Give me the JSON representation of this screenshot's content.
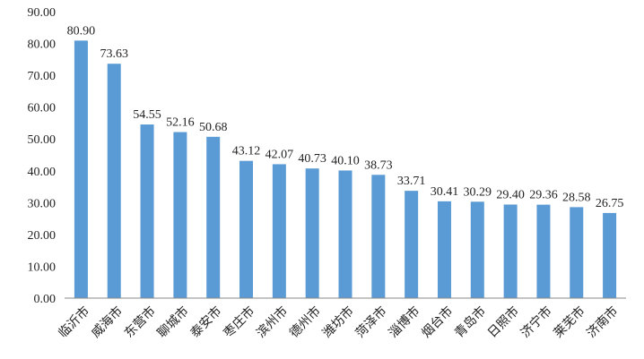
{
  "chart_data": {
    "type": "bar",
    "title": "",
    "xlabel": "",
    "ylabel": "",
    "categories": [
      "临沂市",
      "威海市",
      "东营市",
      "聊城市",
      "泰安市",
      "枣庄市",
      "滨州市",
      "德州市",
      "潍坊市",
      "菏泽市",
      "淄博市",
      "烟台市",
      "青岛市",
      "日照市",
      "济宁市",
      "莱芜市",
      "济南市"
    ],
    "values": [
      80.9,
      73.63,
      54.55,
      52.16,
      50.68,
      43.12,
      42.07,
      40.73,
      40.1,
      38.73,
      33.71,
      30.41,
      30.29,
      29.4,
      29.36,
      28.58,
      26.75
    ],
    "value_labels": [
      "80.90",
      "73.63",
      "54.55",
      "52.16",
      "50.68",
      "43.12",
      "42.07",
      "40.73",
      "40.10",
      "38.73",
      "33.71",
      "30.41",
      "30.29",
      "29.40",
      "29.36",
      "28.58",
      "26.75"
    ],
    "ylim": [
      0,
      90
    ],
    "yticks": [
      0,
      10,
      20,
      30,
      40,
      50,
      60,
      70,
      80,
      90
    ],
    "ytick_labels": [
      "0.00",
      "10.00",
      "20.00",
      "30.00",
      "40.00",
      "50.00",
      "60.00",
      "70.00",
      "80.00",
      "90.00"
    ],
    "grid": false,
    "legend": "none",
    "bar_color": "#5b9bd5",
    "axis_color": "#888888"
  }
}
